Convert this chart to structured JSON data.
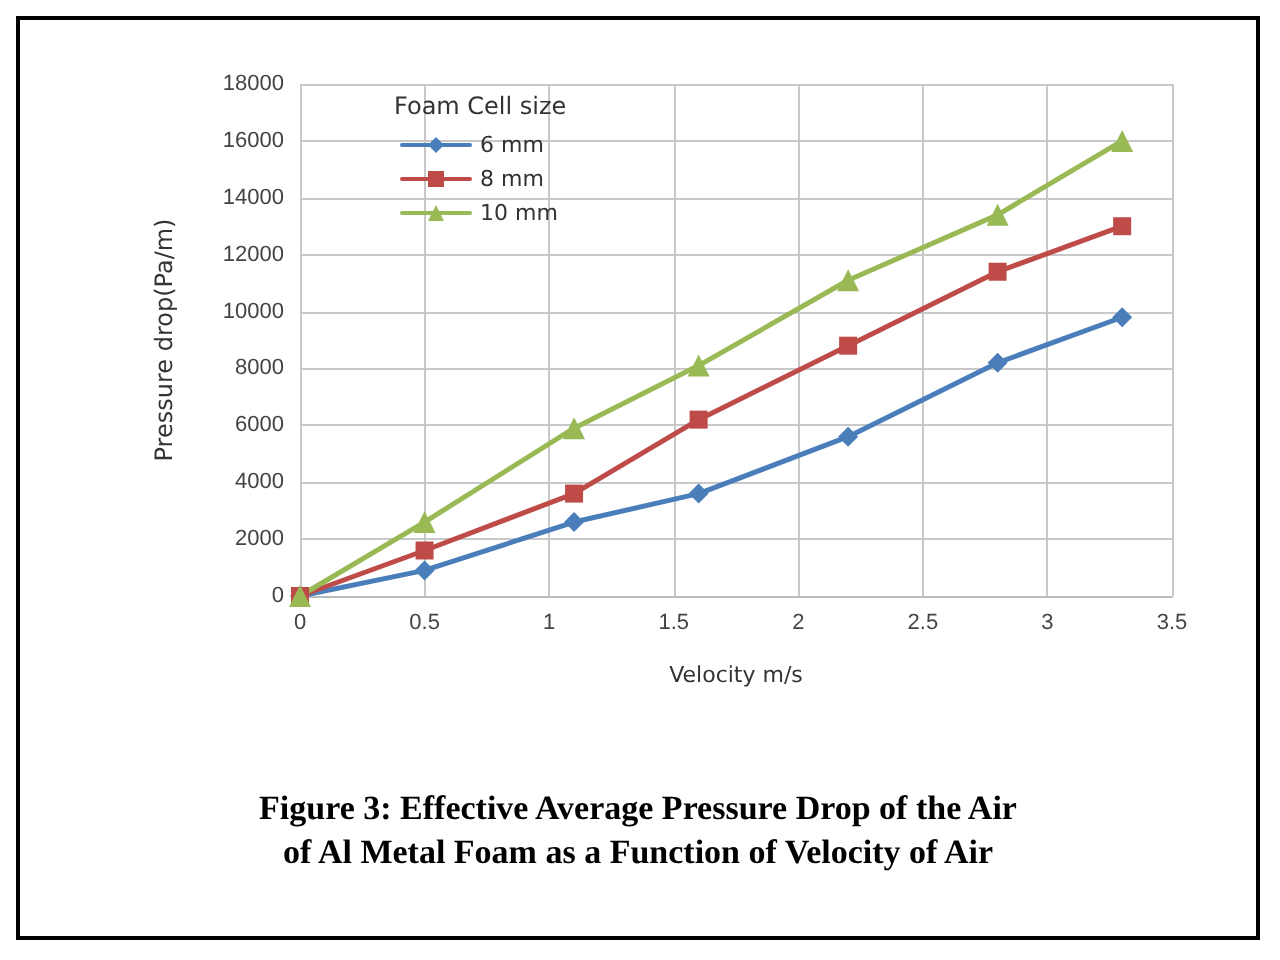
{
  "chart_data": {
    "type": "line",
    "xlabel": "Velocity m/s",
    "ylabel": "Pressure drop(Pa/m)",
    "legend_title": "Foam Cell size",
    "annotations": [
      "Figure 3: Effective Average Pressure Drop of the Air\nof Al Metal Foam as a Function of Velocity of Air"
    ],
    "x": [
      0,
      0.5,
      1.1,
      1.6,
      2.2,
      2.8,
      3.3
    ],
    "series": [
      {
        "name": "6 mm",
        "color": "#4a7ebb",
        "marker": "diamond",
        "values": [
          0,
          900,
          2600,
          3600,
          5600,
          8200,
          9800
        ]
      },
      {
        "name": "8 mm",
        "color": "#be4b48",
        "marker": "square",
        "values": [
          0,
          1600,
          3600,
          6200,
          8800,
          11400,
          13000
        ]
      },
      {
        "name": "10 mm",
        "color": "#98b954",
        "marker": "triangle",
        "values": [
          0,
          2600,
          5900,
          8100,
          11100,
          13400,
          16000
        ]
      }
    ],
    "xlim": [
      0,
      3.5
    ],
    "xticks": [
      0,
      0.5,
      1,
      1.5,
      2,
      2.5,
      3,
      3.5
    ],
    "ylim": [
      0,
      18000
    ],
    "yticks": [
      0,
      2000,
      4000,
      6000,
      8000,
      10000,
      12000,
      14000,
      16000,
      18000
    ],
    "grid": true,
    "legend": "top left",
    "line_style": "solid"
  }
}
